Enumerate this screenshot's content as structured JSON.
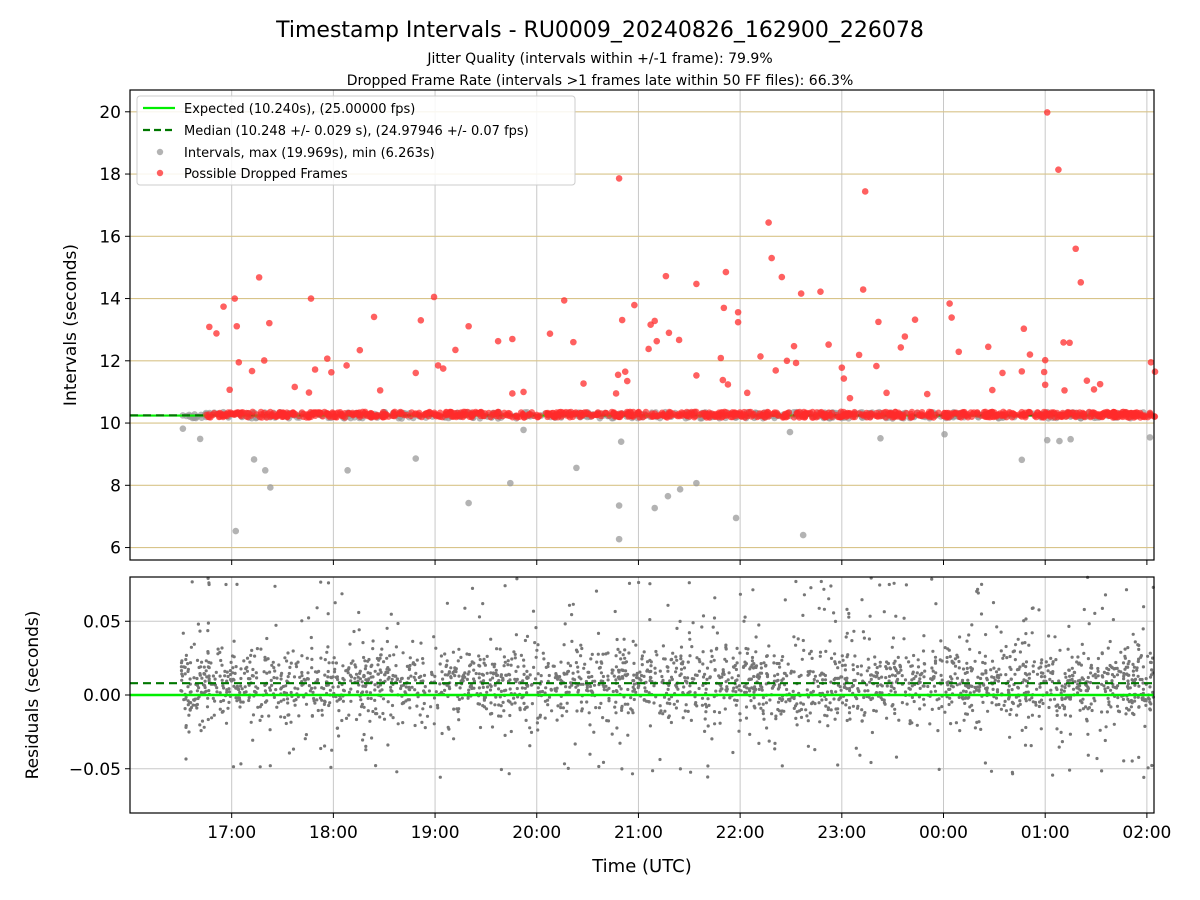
{
  "title": "Timestamp Intervals - RU0009_20240826_162900_226078",
  "subtitle_1": "Jitter Quality (intervals within +/-1 frame): 79.9%",
  "subtitle_2": "Dropped Frame Rate (intervals >1 frames late within 50 FF files): 66.3%",
  "colors": {
    "expected": "#00ee00",
    "median": "#007700",
    "intervals": "#999999",
    "dropped": "#ff2b2b",
    "residuals": "#777777",
    "hgrid_top": "#d8c48a",
    "grid": "#c8c8c8"
  },
  "chart_data": [
    {
      "type": "scatter",
      "ylabel": "Intervals (seconds)",
      "ylim": [
        5.6,
        20.7
      ],
      "xlim_hours": [
        16.0,
        26.07
      ],
      "yticks": [
        "6",
        "8",
        "10",
        "12",
        "14",
        "16",
        "18",
        "20"
      ],
      "grid": true,
      "legend_position": "top-left",
      "legend": [
        "Expected (10.240s), (25.00000 fps)",
        "Median (10.248 +/- 0.029 s), (24.97946 +/- 0.07 fps)",
        "Intervals, max (19.969s), min (6.263s)",
        "Possible Dropped Frames"
      ],
      "expected_value": 10.24,
      "median_value": 10.248,
      "x_start_hours": 16.5,
      "x_end_hours": 26.07,
      "baseline_band": [
        10.15,
        10.35
      ],
      "outliers_low": [
        [
          16.52,
          9.82
        ],
        [
          16.69,
          9.49
        ],
        [
          17.04,
          6.53
        ],
        [
          17.22,
          8.83
        ],
        [
          17.33,
          8.48
        ],
        [
          17.38,
          7.93
        ],
        [
          18.14,
          8.48
        ],
        [
          18.81,
          8.86
        ],
        [
          19.33,
          7.43
        ],
        [
          19.74,
          8.07
        ],
        [
          20.39,
          8.56
        ],
        [
          20.81,
          7.35
        ],
        [
          20.81,
          6.27
        ],
        [
          20.83,
          9.4
        ],
        [
          21.16,
          7.27
        ],
        [
          21.29,
          7.65
        ],
        [
          21.41,
          7.87
        ],
        [
          21.57,
          8.07
        ],
        [
          21.96,
          6.95
        ],
        [
          22.62,
          6.4
        ],
        [
          24.01,
          9.64
        ],
        [
          25.02,
          9.45
        ],
        [
          25.14,
          9.42
        ],
        [
          25.25,
          9.48
        ],
        [
          24.77,
          8.82
        ],
        [
          26.03,
          9.54
        ],
        [
          23.38,
          9.51
        ],
        [
          22.49,
          9.71
        ],
        [
          19.87,
          9.78
        ]
      ],
      "dropped_high": [
        [
          16.78,
          13.09
        ],
        [
          16.85,
          12.88
        ],
        [
          16.92,
          13.74
        ],
        [
          16.98,
          11.07
        ],
        [
          17.03,
          14.0
        ],
        [
          17.05,
          13.11
        ],
        [
          17.07,
          11.95
        ],
        [
          17.2,
          11.67
        ],
        [
          17.27,
          14.68
        ],
        [
          17.32,
          12.01
        ],
        [
          17.37,
          13.21
        ],
        [
          17.62,
          11.16
        ],
        [
          17.76,
          10.98
        ],
        [
          17.78,
          14.0
        ],
        [
          17.82,
          11.72
        ],
        [
          17.94,
          12.07
        ],
        [
          17.98,
          11.63
        ],
        [
          18.13,
          11.85
        ],
        [
          18.26,
          12.34
        ],
        [
          18.4,
          13.41
        ],
        [
          18.46,
          11.05
        ],
        [
          18.81,
          11.61
        ],
        [
          18.86,
          13.3
        ],
        [
          18.99,
          14.05
        ],
        [
          19.03,
          11.85
        ],
        [
          19.08,
          11.75
        ],
        [
          19.2,
          12.35
        ],
        [
          19.33,
          13.11
        ],
        [
          19.62,
          12.63
        ],
        [
          19.76,
          12.7
        ],
        [
          19.76,
          10.95
        ],
        [
          19.87,
          11.0
        ],
        [
          20.13,
          12.87
        ],
        [
          20.27,
          13.94
        ],
        [
          20.36,
          12.6
        ],
        [
          20.46,
          11.27
        ],
        [
          20.78,
          10.95
        ],
        [
          20.8,
          11.55
        ],
        [
          20.81,
          17.86
        ],
        [
          20.84,
          13.31
        ],
        [
          20.87,
          11.65
        ],
        [
          20.89,
          11.35
        ],
        [
          20.96,
          13.79
        ],
        [
          21.1,
          12.38
        ],
        [
          21.12,
          13.16
        ],
        [
          21.16,
          13.28
        ],
        [
          21.18,
          12.63
        ],
        [
          21.27,
          14.72
        ],
        [
          21.3,
          12.9
        ],
        [
          21.4,
          12.67
        ],
        [
          21.57,
          14.47
        ],
        [
          21.57,
          11.53
        ],
        [
          21.81,
          12.09
        ],
        [
          21.83,
          11.38
        ],
        [
          21.84,
          13.7
        ],
        [
          21.86,
          14.85
        ],
        [
          21.88,
          11.24
        ],
        [
          21.98,
          13.56
        ],
        [
          21.98,
          13.24
        ],
        [
          22.07,
          10.97
        ],
        [
          22.2,
          12.14
        ],
        [
          22.28,
          16.44
        ],
        [
          22.31,
          15.3
        ],
        [
          22.35,
          11.69
        ],
        [
          22.41,
          14.69
        ],
        [
          22.46,
          12.0
        ],
        [
          22.53,
          12.47
        ],
        [
          22.55,
          11.93
        ],
        [
          22.6,
          14.16
        ],
        [
          22.79,
          14.22
        ],
        [
          22.87,
          12.52
        ],
        [
          23.0,
          11.78
        ],
        [
          23.02,
          11.43
        ],
        [
          23.08,
          10.8
        ],
        [
          23.17,
          12.19
        ],
        [
          23.21,
          14.29
        ],
        [
          23.23,
          17.44
        ],
        [
          23.34,
          11.83
        ],
        [
          23.36,
          13.25
        ],
        [
          23.44,
          10.97
        ],
        [
          23.58,
          12.43
        ],
        [
          23.62,
          12.78
        ],
        [
          23.72,
          13.32
        ],
        [
          23.84,
          10.93
        ],
        [
          24.06,
          13.84
        ],
        [
          24.08,
          13.39
        ],
        [
          24.15,
          12.29
        ],
        [
          24.44,
          12.45
        ],
        [
          24.48,
          11.06
        ],
        [
          24.58,
          11.61
        ],
        [
          24.77,
          11.66
        ],
        [
          24.79,
          13.03
        ],
        [
          24.85,
          12.2
        ],
        [
          24.99,
          11.64
        ],
        [
          25.0,
          12.02
        ],
        [
          25.0,
          11.23
        ],
        [
          25.02,
          19.98
        ],
        [
          25.13,
          18.14
        ],
        [
          25.18,
          12.59
        ],
        [
          25.24,
          12.58
        ],
        [
          25.3,
          15.6
        ],
        [
          25.35,
          14.52
        ],
        [
          25.41,
          11.36
        ],
        [
          25.54,
          11.25
        ],
        [
          25.48,
          11.08
        ],
        [
          25.19,
          11.05
        ],
        [
          26.04,
          11.95
        ],
        [
          26.08,
          11.65
        ]
      ]
    },
    {
      "type": "scatter",
      "xlabel": "Time (UTC)",
      "ylabel": "Residuals (seconds)",
      "ylim": [
        -0.08,
        0.08
      ],
      "yticks": [
        "−0.05",
        "0.00",
        "0.05"
      ],
      "xticks": [
        "17:00",
        "18:00",
        "19:00",
        "20:00",
        "21:00",
        "22:00",
        "23:00",
        "00:00",
        "01:00",
        "02:00"
      ],
      "expected_residual": 0.0,
      "median_residual": 0.008,
      "core_spread": 0.018,
      "tail_spread": 0.08
    }
  ]
}
